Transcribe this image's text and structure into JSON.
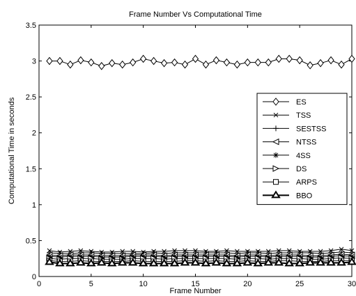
{
  "chart_data": {
    "type": "line",
    "title": "Frame Number Vs Computational Time",
    "xlabel": "Frame Number",
    "ylabel": "Computational Time in seconds",
    "xlim": [
      0,
      30
    ],
    "ylim": [
      0,
      3.5
    ],
    "xticks": [
      0,
      5,
      10,
      15,
      20,
      25,
      30
    ],
    "yticks": [
      0,
      0.5,
      1,
      1.5,
      2,
      2.5,
      3,
      3.5
    ],
    "grid": false,
    "legend_position": "right",
    "x": [
      1,
      2,
      3,
      4,
      5,
      6,
      7,
      8,
      9,
      10,
      11,
      12,
      13,
      14,
      15,
      16,
      17,
      18,
      19,
      20,
      21,
      22,
      23,
      24,
      25,
      26,
      27,
      28,
      29,
      30
    ],
    "series": [
      {
        "name": "ES",
        "marker": "diamond",
        "bold": false,
        "values": [
          3.0,
          3.0,
          2.95,
          3.01,
          2.98,
          2.93,
          2.97,
          2.95,
          2.98,
          3.03,
          3.0,
          2.97,
          2.98,
          2.95,
          3.03,
          2.95,
          3.01,
          2.98,
          2.95,
          2.98,
          2.98,
          2.98,
          3.03,
          3.03,
          3.01,
          2.94,
          2.97,
          3.01,
          2.95,
          3.03
        ]
      },
      {
        "name": "TSS",
        "marker": "x",
        "bold": false,
        "values": [
          0.36,
          0.34,
          0.35,
          0.36,
          0.35,
          0.34,
          0.34,
          0.35,
          0.35,
          0.34,
          0.35,
          0.35,
          0.36,
          0.36,
          0.36,
          0.35,
          0.35,
          0.36,
          0.35,
          0.35,
          0.35,
          0.35,
          0.36,
          0.36,
          0.35,
          0.35,
          0.35,
          0.36,
          0.38,
          0.36
        ]
      },
      {
        "name": "SESTSS",
        "marker": "plus",
        "bold": false,
        "values": [
          0.33,
          0.32,
          0.32,
          0.33,
          0.33,
          0.32,
          0.32,
          0.32,
          0.32,
          0.32,
          0.33,
          0.32,
          0.33,
          0.33,
          0.33,
          0.33,
          0.33,
          0.33,
          0.32,
          0.33,
          0.33,
          0.32,
          0.33,
          0.33,
          0.33,
          0.33,
          0.32,
          0.33,
          0.34,
          0.33
        ]
      },
      {
        "name": "NTSS",
        "marker": "tri-left",
        "bold": false,
        "values": [
          0.3,
          0.29,
          0.3,
          0.3,
          0.3,
          0.29,
          0.29,
          0.29,
          0.3,
          0.3,
          0.3,
          0.29,
          0.3,
          0.3,
          0.3,
          0.3,
          0.3,
          0.3,
          0.29,
          0.3,
          0.3,
          0.29,
          0.3,
          0.3,
          0.3,
          0.29,
          0.29,
          0.3,
          0.31,
          0.3
        ]
      },
      {
        "name": "4SS",
        "marker": "star",
        "bold": false,
        "values": [
          0.28,
          0.27,
          0.28,
          0.28,
          0.28,
          0.27,
          0.27,
          0.27,
          0.28,
          0.28,
          0.28,
          0.27,
          0.28,
          0.28,
          0.28,
          0.28,
          0.28,
          0.28,
          0.27,
          0.28,
          0.28,
          0.27,
          0.28,
          0.28,
          0.28,
          0.27,
          0.27,
          0.28,
          0.29,
          0.28
        ]
      },
      {
        "name": "DS",
        "marker": "tri-right",
        "bold": false,
        "values": [
          0.25,
          0.24,
          0.25,
          0.25,
          0.25,
          0.24,
          0.24,
          0.24,
          0.25,
          0.25,
          0.25,
          0.24,
          0.25,
          0.25,
          0.25,
          0.25,
          0.25,
          0.25,
          0.24,
          0.25,
          0.25,
          0.24,
          0.25,
          0.25,
          0.25,
          0.24,
          0.24,
          0.25,
          0.26,
          0.25
        ]
      },
      {
        "name": "ARPS",
        "marker": "square",
        "bold": false,
        "values": [
          0.22,
          0.21,
          0.21,
          0.22,
          0.21,
          0.21,
          0.21,
          0.21,
          0.22,
          0.21,
          0.21,
          0.21,
          0.21,
          0.22,
          0.22,
          0.21,
          0.22,
          0.21,
          0.21,
          0.22,
          0.21,
          0.21,
          0.22,
          0.22,
          0.21,
          0.21,
          0.21,
          0.22,
          0.22,
          0.22
        ]
      },
      {
        "name": "BBO",
        "marker": "tri-up",
        "bold": true,
        "values": [
          0.2,
          0.18,
          0.18,
          0.19,
          0.18,
          0.19,
          0.18,
          0.19,
          0.19,
          0.18,
          0.18,
          0.18,
          0.18,
          0.19,
          0.19,
          0.18,
          0.19,
          0.18,
          0.18,
          0.19,
          0.18,
          0.19,
          0.19,
          0.18,
          0.18,
          0.19,
          0.19,
          0.19,
          0.19,
          0.2
        ]
      }
    ]
  }
}
